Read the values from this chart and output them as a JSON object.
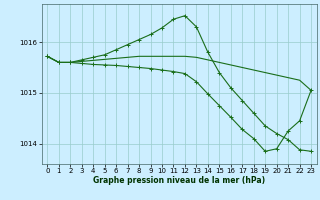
{
  "xlabel": "Graphe pression niveau de la mer (hPa)",
  "background_color": "#cceeff",
  "grid_color": "#99cccc",
  "line_color": "#1a6e1a",
  "xlim": [
    -0.5,
    23.5
  ],
  "ylim": [
    1013.6,
    1016.75
  ],
  "yticks": [
    1014,
    1015,
    1016
  ],
  "xticks": [
    0,
    1,
    2,
    3,
    4,
    5,
    6,
    7,
    8,
    9,
    10,
    11,
    12,
    13,
    14,
    15,
    16,
    17,
    18,
    19,
    20,
    21,
    22,
    23
  ],
  "line1_x": [
    0,
    1,
    2,
    3,
    4,
    5,
    6,
    7,
    8,
    9,
    10,
    11,
    12,
    13,
    14,
    15,
    16,
    17,
    18,
    19,
    20,
    21,
    22,
    23
  ],
  "line1_y": [
    1015.72,
    1015.6,
    1015.6,
    1015.62,
    1015.64,
    1015.66,
    1015.68,
    1015.7,
    1015.72,
    1015.72,
    1015.72,
    1015.72,
    1015.72,
    1015.7,
    1015.65,
    1015.6,
    1015.55,
    1015.5,
    1015.45,
    1015.4,
    1015.35,
    1015.3,
    1015.25,
    1015.05
  ],
  "line2_x": [
    0,
    1,
    2,
    3,
    4,
    5,
    6,
    7,
    8,
    9,
    10,
    11,
    12,
    13,
    14,
    15,
    16,
    17,
    18,
    19,
    20,
    21,
    22,
    23
  ],
  "line2_y": [
    1015.72,
    1015.6,
    1015.6,
    1015.65,
    1015.7,
    1015.75,
    1015.85,
    1015.95,
    1016.05,
    1016.15,
    1016.28,
    1016.45,
    1016.52,
    1016.3,
    1015.8,
    1015.4,
    1015.1,
    1014.85,
    1014.6,
    1014.35,
    1014.2,
    1014.08,
    1013.88,
    1013.85
  ],
  "line3_x": [
    0,
    1,
    2,
    3,
    4,
    5,
    6,
    7,
    8,
    9,
    10,
    11,
    12,
    13,
    14,
    15,
    16,
    17,
    18,
    19,
    20,
    21,
    22,
    23
  ],
  "line3_y": [
    1015.72,
    1015.6,
    1015.6,
    1015.58,
    1015.56,
    1015.55,
    1015.54,
    1015.52,
    1015.5,
    1015.48,
    1015.45,
    1015.42,
    1015.38,
    1015.22,
    1014.98,
    1014.75,
    1014.52,
    1014.28,
    1014.1,
    1013.85,
    1013.9,
    1014.25,
    1014.45,
    1015.05
  ]
}
